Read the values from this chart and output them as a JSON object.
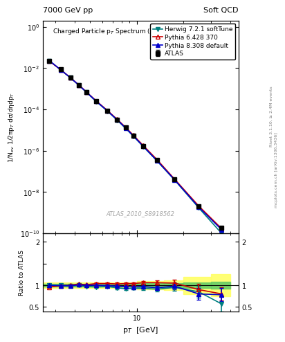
{
  "title_left": "7000 GeV pp",
  "title_right": "Soft QCD",
  "plot_title": "Charged Particle p$_T$ Spectrum (N$_{ch}$ > 1, p$_T$ > 2.5 GeV)",
  "ylabel_main": "1/N$_{ev}$ 1/2πp$_T$ dσ/dηdp$_T$",
  "ylabel_ratio": "Ratio to ATLAS",
  "xlabel": "p$_T$  [GeV]",
  "watermark": "ATLAS_2010_S8918562",
  "side_label1": "mcplots.cern.ch [arXiv:1306.3436]",
  "side_label2": "Rivet 3.1.10, ≥ 2.4M events",
  "xlim": [
    2.5,
    40
  ],
  "ylim_main": [
    1e-10,
    2
  ],
  "ylim_ratio": [
    0.4,
    2.2
  ],
  "atlas_pt": [
    2.75,
    3.25,
    3.75,
    4.25,
    4.75,
    5.5,
    6.5,
    7.5,
    8.5,
    9.5,
    11.0,
    13.5,
    17.5,
    25.0,
    35.0
  ],
  "atlas_y": [
    0.023,
    0.0085,
    0.0035,
    0.0015,
    0.0007,
    0.00025,
    8.5e-05,
    3.2e-05,
    1.3e-05,
    5.5e-06,
    1.7e-06,
    3.5e-07,
    4e-08,
    2e-09,
    1.8e-10
  ],
  "atlas_yerr": [
    0.0003,
    0.0002,
    8e-05,
    3e-05,
    1.5e-05,
    5e-06,
    1.8e-06,
    7e-07,
    3e-07,
    1.2e-07,
    3.5e-08,
    7e-09,
    1e-09,
    7e-11,
    8e-12
  ],
  "herwig_pt": [
    2.75,
    3.25,
    3.75,
    4.25,
    4.75,
    5.5,
    6.5,
    7.5,
    8.5,
    9.5,
    11.0,
    13.5,
    17.5,
    25.0,
    35.0
  ],
  "herwig_y": [
    0.023,
    0.0083,
    0.0034,
    0.0015,
    0.00068,
    0.00024,
    8.2e-05,
    3e-05,
    1.2e-05,
    5.1e-06,
    1.6e-06,
    3.2e-07,
    3.8e-08,
    1.7e-09,
    1e-10
  ],
  "pythia6_pt": [
    2.75,
    3.25,
    3.75,
    4.25,
    4.75,
    5.5,
    6.5,
    7.5,
    8.5,
    9.5,
    11.0,
    13.5,
    17.5,
    25.0,
    35.0
  ],
  "pythia6_y": [
    0.022,
    0.0084,
    0.0035,
    0.00155,
    0.00071,
    0.00026,
    8.8e-05,
    3.3e-05,
    1.35e-05,
    5.7e-06,
    1.8e-06,
    3.7e-07,
    4.2e-08,
    2.1e-09,
    1.7e-10
  ],
  "pythia8_pt": [
    2.75,
    3.25,
    3.75,
    4.25,
    4.75,
    5.5,
    6.5,
    7.5,
    8.5,
    9.5,
    11.0,
    13.5,
    17.5,
    25.0,
    35.0
  ],
  "pythia8_y": [
    0.023,
    0.0084,
    0.00345,
    0.00152,
    0.0007,
    0.00025,
    8.4e-05,
    3.15e-05,
    1.26e-05,
    5.3e-06,
    1.65e-06,
    3.3e-07,
    3.9e-08,
    1.85e-09,
    1.5e-10
  ],
  "herwig_ratio": [
    1.0,
    1.0,
    0.98,
    1.0,
    0.97,
    0.96,
    0.97,
    0.94,
    0.92,
    0.93,
    0.93,
    0.91,
    0.95,
    0.85,
    0.57
  ],
  "pythia6_ratio": [
    0.96,
    0.99,
    1.0,
    1.03,
    1.01,
    1.04,
    1.04,
    1.03,
    1.04,
    1.04,
    1.06,
    1.06,
    1.05,
    0.9,
    0.8
  ],
  "pythia8_ratio": [
    1.0,
    0.99,
    0.99,
    1.01,
    1.0,
    1.0,
    0.99,
    0.98,
    0.97,
    0.96,
    0.97,
    0.94,
    0.98,
    0.8,
    0.78
  ],
  "herwig_ratio_err": [
    0.03,
    0.02,
    0.02,
    0.02,
    0.02,
    0.02,
    0.02,
    0.03,
    0.03,
    0.03,
    0.04,
    0.05,
    0.08,
    0.13,
    0.18
  ],
  "pythia6_ratio_err": [
    0.03,
    0.02,
    0.02,
    0.02,
    0.02,
    0.02,
    0.02,
    0.03,
    0.03,
    0.03,
    0.04,
    0.05,
    0.08,
    0.13,
    0.15
  ],
  "pythia8_ratio_err": [
    0.03,
    0.02,
    0.02,
    0.02,
    0.02,
    0.02,
    0.02,
    0.03,
    0.03,
    0.03,
    0.04,
    0.05,
    0.08,
    0.13,
    0.15
  ],
  "atlas_ratio_band_x": [
    2.5,
    5.0,
    7.5,
    10.0,
    15.0,
    20.0,
    30.0
  ],
  "atlas_ratio_band_w": [
    2.5,
    2.5,
    2.5,
    5.0,
    5.0,
    10.0,
    10.0
  ],
  "atlas_ratio_band_green": [
    0.06,
    0.06,
    0.06,
    0.1,
    0.1,
    0.12,
    0.15
  ],
  "atlas_ratio_band_yellow": [
    0.12,
    0.12,
    0.12,
    0.2,
    0.22,
    0.4,
    0.5
  ],
  "color_atlas": "#000000",
  "color_herwig": "#008080",
  "color_pythia6": "#cc0000",
  "color_pythia8": "#0000cc",
  "bg_color": "#ffffff"
}
